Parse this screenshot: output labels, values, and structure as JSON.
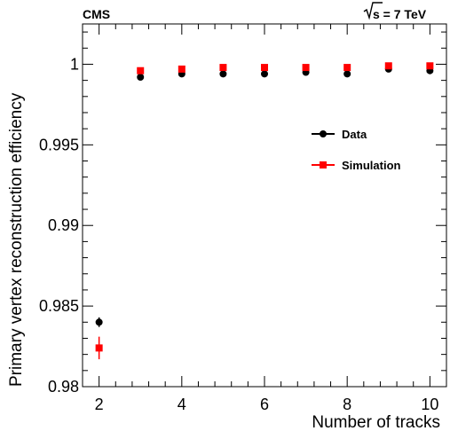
{
  "chart_data": {
    "type": "scatter",
    "header_left": "CMS",
    "header_right_sqrt": "s",
    "header_right_rest": " = 7 TeV",
    "xlabel": "Number of tracks",
    "ylabel": "Primary vertex reconstruction efficiency",
    "xlim": [
      1.6,
      10.4
    ],
    "ylim": [
      0.98,
      1.0025
    ],
    "x_ticks": [
      2,
      4,
      6,
      8,
      10
    ],
    "x_tick_labels": [
      "2",
      "4",
      "6",
      "8",
      "10"
    ],
    "y_ticks": [
      0.98,
      0.985,
      0.99,
      0.995,
      1.0
    ],
    "y_tick_labels": [
      "0.98",
      "0.985",
      "0.99",
      "0.995",
      "1"
    ],
    "legend_position": "right",
    "grid": false,
    "series": [
      {
        "name": "Data",
        "marker": "circle",
        "color": "#000000",
        "x": [
          2,
          3,
          4,
          5,
          6,
          7,
          8,
          9,
          10
        ],
        "y": [
          0.984,
          0.9992,
          0.9994,
          0.9994,
          0.9994,
          0.9995,
          0.9994,
          0.9997,
          0.9996
        ],
        "yerr": [
          0.0003,
          0.0001,
          0.0001,
          0.0001,
          0.0001,
          0.0001,
          0.0001,
          0.0001,
          0.0001
        ]
      },
      {
        "name": "Simulation",
        "marker": "square",
        "color": "#ff0000",
        "x": [
          2,
          3,
          4,
          5,
          6,
          7,
          8,
          9,
          10
        ],
        "y": [
          0.9824,
          0.9996,
          0.9997,
          0.9998,
          0.9998,
          0.9998,
          0.9998,
          0.9999,
          0.9999
        ],
        "yerr": [
          0.0007,
          0.0001,
          0.0001,
          0.0001,
          0.0001,
          0.0001,
          0.0001,
          0.0001,
          0.0001
        ]
      }
    ]
  }
}
